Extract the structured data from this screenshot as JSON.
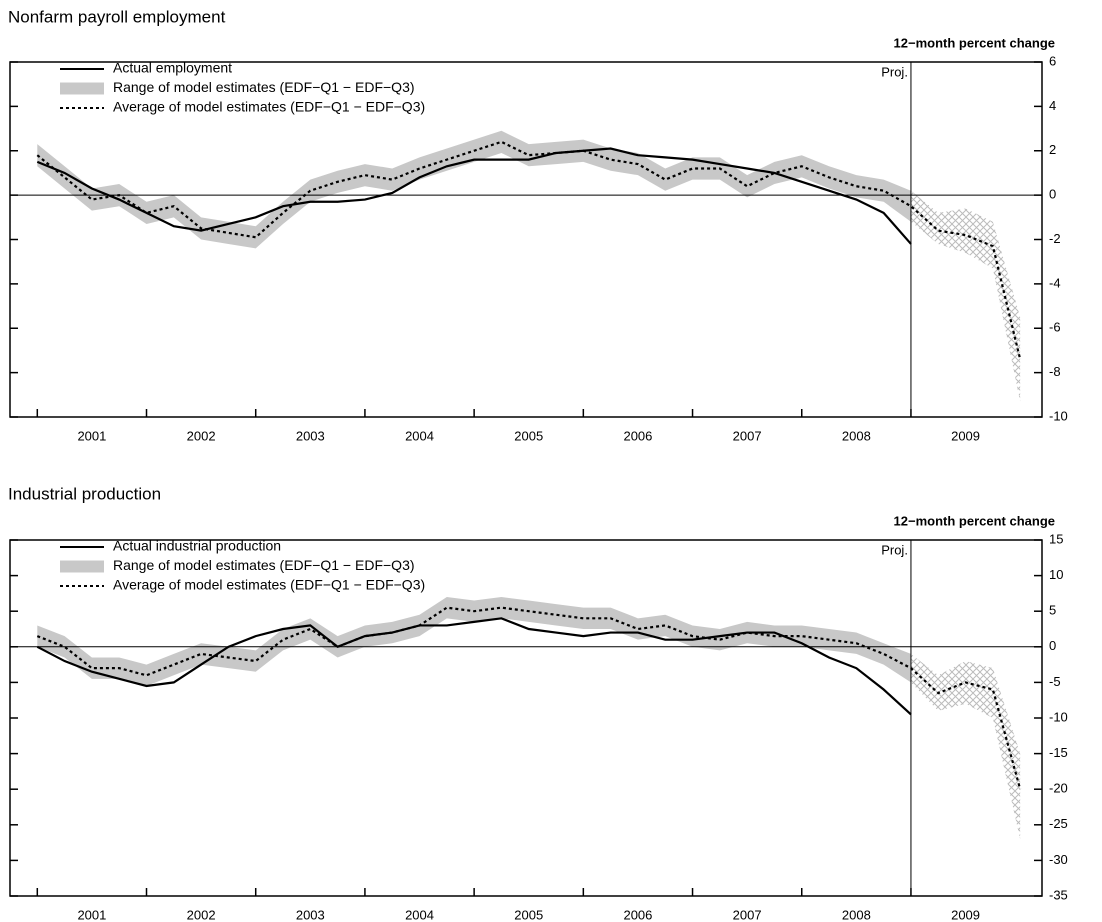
{
  "chart_data": [
    {
      "type": "line",
      "title": "Nonfarm payroll employment",
      "axis_label": "12−month percent change",
      "projection_label": "Proj.",
      "projection_start": 2009.0,
      "x": [
        2001.0,
        2001.25,
        2001.5,
        2001.75,
        2002.0,
        2002.25,
        2002.5,
        2002.75,
        2003.0,
        2003.25,
        2003.5,
        2003.75,
        2004.0,
        2004.25,
        2004.5,
        2004.75,
        2005.0,
        2005.25,
        2005.5,
        2005.75,
        2006.0,
        2006.25,
        2006.5,
        2006.75,
        2007.0,
        2007.25,
        2007.5,
        2007.75,
        2008.0,
        2008.25,
        2008.5,
        2008.75,
        2009.0,
        2009.25,
        2009.5,
        2009.75,
        2010.0
      ],
      "series": [
        {
          "name": "Actual employment",
          "color": "#000000",
          "style": "solid",
          "values": [
            1.5,
            1.0,
            0.3,
            -0.2,
            -0.8,
            -1.4,
            -1.6,
            -1.3,
            -1.0,
            -0.5,
            -0.3,
            -0.3,
            -0.2,
            0.1,
            0.8,
            1.3,
            1.6,
            1.6,
            1.6,
            1.9,
            2.0,
            2.1,
            1.8,
            1.7,
            1.6,
            1.4,
            1.2,
            1.0,
            0.6,
            0.2,
            -0.2,
            -0.8,
            -2.2,
            null,
            null,
            null,
            null
          ]
        },
        {
          "name": "Range of model estimates (EDF−Q1 − EDF−Q3)",
          "color": "#c8c8c8",
          "low": [
            1.3,
            0.3,
            -0.7,
            -0.5,
            -1.3,
            -1.0,
            -2.0,
            -2.2,
            -2.4,
            -1.3,
            -0.3,
            0.1,
            0.4,
            0.2,
            0.7,
            1.1,
            1.5,
            1.9,
            1.3,
            1.4,
            1.5,
            1.1,
            0.9,
            0.2,
            0.7,
            0.7,
            -0.1,
            0.5,
            0.8,
            0.3,
            -0.1,
            -0.3,
            -1.2,
            -2.2,
            -2.6,
            -3.3,
            -9.3
          ],
          "high": [
            2.3,
            1.3,
            0.3,
            0.5,
            -0.3,
            0.0,
            -1.0,
            -1.2,
            -1.4,
            -0.3,
            0.7,
            1.1,
            1.4,
            1.2,
            1.7,
            2.1,
            2.5,
            2.9,
            2.3,
            2.4,
            2.5,
            2.1,
            1.9,
            1.2,
            1.7,
            1.7,
            0.9,
            1.5,
            1.8,
            1.3,
            0.9,
            0.7,
            0.2,
            -0.8,
            -0.6,
            -1.2,
            -5.5
          ]
        },
        {
          "name": "Average of model estimates (EDF−Q1 − EDF−Q3)",
          "color": "#000000",
          "style": "dotted",
          "values": [
            1.8,
            0.8,
            -0.2,
            0.0,
            -0.8,
            -0.5,
            -1.5,
            -1.7,
            -1.9,
            -0.8,
            0.2,
            0.6,
            0.9,
            0.7,
            1.2,
            1.6,
            2.0,
            2.4,
            1.8,
            1.9,
            2.0,
            1.6,
            1.4,
            0.7,
            1.2,
            1.2,
            0.4,
            1.0,
            1.3,
            0.8,
            0.4,
            0.2,
            -0.5,
            -1.6,
            -1.8,
            -2.3,
            -7.4
          ]
        }
      ],
      "xlim": [
        2000.75,
        2010.2
      ],
      "xticks": [
        {
          "value": 2001.5,
          "label": "2001"
        },
        {
          "value": 2002.5,
          "label": "2002"
        },
        {
          "value": 2003.5,
          "label": "2003"
        },
        {
          "value": 2004.5,
          "label": "2004"
        },
        {
          "value": 2005.5,
          "label": "2005"
        },
        {
          "value": 2006.5,
          "label": "2006"
        },
        {
          "value": 2007.5,
          "label": "2007"
        },
        {
          "value": 2008.5,
          "label": "2008"
        },
        {
          "value": 2009.5,
          "label": "2009"
        }
      ],
      "ylim": [
        -10,
        6
      ],
      "yticks": [
        -10,
        -8,
        -6,
        -4,
        -2,
        0,
        2,
        4,
        6
      ],
      "zero_line": true
    },
    {
      "type": "line",
      "title": "Industrial production",
      "axis_label": "12−month percent change",
      "projection_label": "Proj.",
      "projection_start": 2009.0,
      "x": [
        2001.0,
        2001.25,
        2001.5,
        2001.75,
        2002.0,
        2002.25,
        2002.5,
        2002.75,
        2003.0,
        2003.25,
        2003.5,
        2003.75,
        2004.0,
        2004.25,
        2004.5,
        2004.75,
        2005.0,
        2005.25,
        2005.5,
        2005.75,
        2006.0,
        2006.25,
        2006.5,
        2006.75,
        2007.0,
        2007.25,
        2007.5,
        2007.75,
        2008.0,
        2008.25,
        2008.5,
        2008.75,
        2009.0,
        2009.25,
        2009.5,
        2009.75,
        2010.0
      ],
      "series": [
        {
          "name": "Actual industrial production",
          "color": "#000000",
          "style": "solid",
          "values": [
            0,
            -2,
            -3.5,
            -4.5,
            -5.5,
            -5,
            -2.5,
            0,
            1.5,
            2.5,
            3,
            0,
            1.5,
            2,
            3,
            3,
            3.5,
            4,
            2.5,
            2,
            1.5,
            2,
            2,
            1,
            1,
            1.5,
            2,
            2,
            0.5,
            -1.5,
            -3,
            -6,
            -9.5,
            null,
            null,
            null,
            null
          ]
        },
        {
          "name": "Range of model estimates (EDF−Q1 − EDF−Q3)",
          "color": "#c8c8c8",
          "low": [
            0,
            -1.5,
            -4.5,
            -4.5,
            -5.5,
            -4,
            -2.5,
            -3,
            -3.5,
            -0.5,
            1,
            -1.5,
            0,
            0.5,
            1.5,
            4,
            3.5,
            4,
            3.5,
            3,
            2.5,
            2.5,
            1,
            1.5,
            0,
            -0.5,
            0.5,
            0,
            0,
            -0.5,
            -1,
            -2.5,
            -5,
            -9,
            -8,
            -10,
            -27
          ],
          "high": [
            3,
            1.5,
            -1.5,
            -1.5,
            -2.5,
            -1,
            0.5,
            0,
            -0.5,
            2.5,
            4,
            1.5,
            3,
            3.5,
            4.5,
            7,
            6.5,
            7,
            6.5,
            6,
            5.5,
            5.5,
            4,
            4.5,
            3,
            2.5,
            3.5,
            3,
            3,
            2.5,
            2,
            0.5,
            -1,
            -4,
            -2,
            -3,
            -15
          ]
        },
        {
          "name": "Average of model estimates (EDF−Q1 − EDF−Q3)",
          "color": "#000000",
          "style": "dotted",
          "values": [
            1.5,
            0,
            -3,
            -3,
            -4,
            -2.5,
            -1,
            -1.5,
            -2,
            1,
            2.5,
            0,
            1.5,
            2,
            3,
            5.5,
            5,
            5.5,
            5,
            4.5,
            4,
            4,
            2.5,
            3,
            1.5,
            1,
            2,
            1.5,
            1.5,
            1,
            0.5,
            -1,
            -3,
            -6.5,
            -5,
            -6,
            -20
          ]
        }
      ],
      "xlim": [
        2000.75,
        2010.2
      ],
      "xticks": [
        {
          "value": 2001.5,
          "label": "2001"
        },
        {
          "value": 2002.5,
          "label": "2002"
        },
        {
          "value": 2003.5,
          "label": "2003"
        },
        {
          "value": 2004.5,
          "label": "2004"
        },
        {
          "value": 2005.5,
          "label": "2005"
        },
        {
          "value": 2006.5,
          "label": "2006"
        },
        {
          "value": 2007.5,
          "label": "2007"
        },
        {
          "value": 2008.5,
          "label": "2008"
        },
        {
          "value": 2009.5,
          "label": "2009"
        }
      ],
      "ylim": [
        -35,
        15
      ],
      "yticks": [
        -35,
        -30,
        -25,
        -20,
        -15,
        -10,
        -5,
        0,
        5,
        10,
        15
      ],
      "zero_line": true
    }
  ]
}
